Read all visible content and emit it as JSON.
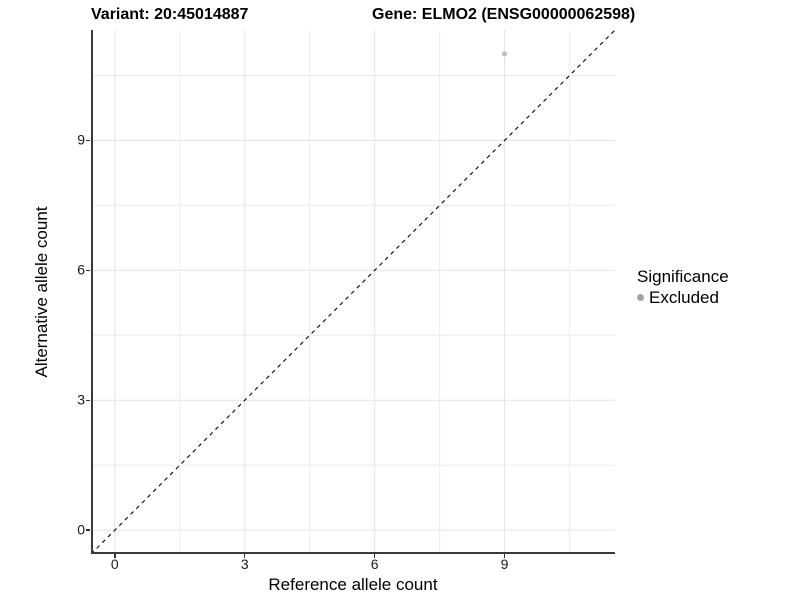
{
  "titles": {
    "left": "Variant: 20:45014887",
    "right": "Gene: ELMO2 (ENSG00000062598)"
  },
  "chart_data": {
    "type": "scatter",
    "xlabel": "Reference allele count",
    "ylabel": "Alternative allele count",
    "xlim": [
      -0.55,
      11.55
    ],
    "ylim": [
      -0.55,
      11.55
    ],
    "x_major_ticks": [
      0,
      3,
      6,
      9
    ],
    "y_major_ticks": [
      0,
      3,
      6,
      9
    ],
    "x_minor_gridlines": [
      1.5,
      4.5,
      7.5,
      10.5
    ],
    "y_minor_gridlines": [
      1.5,
      4.5,
      7.5,
      10.5
    ],
    "grid": true,
    "series": [
      {
        "name": "Excluded",
        "color": "#bebebe",
        "points": [
          {
            "x": 9,
            "y": 11
          }
        ]
      }
    ],
    "identity_line": {
      "style": "dashed",
      "color": "#000000",
      "from": [
        -0.55,
        -0.55
      ],
      "to": [
        11.55,
        11.55
      ]
    },
    "legend": {
      "title": "Significance",
      "position": "right",
      "entries": [
        {
          "label": "Excluded",
          "color": "#a3a3a3"
        }
      ]
    }
  },
  "colors": {
    "background": "#ffffff",
    "grid_major": "#e4e4e4",
    "grid_minor": "#ececec",
    "axis_line": "#3a3a3a",
    "tick_mark": "#333333",
    "tick_text": "#1a1a1a",
    "text": "#000000"
  }
}
